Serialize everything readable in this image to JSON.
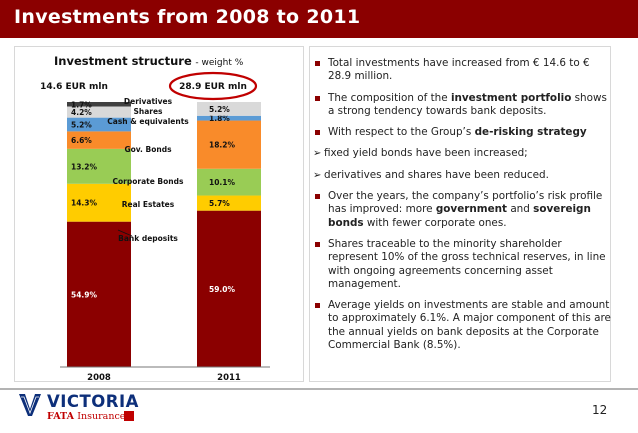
{
  "slide": {
    "title": "Investments from 2008 to 2011",
    "page_number": "12"
  },
  "colors": {
    "title_bar": "#8b0000",
    "bank_deposits": "#8b0000",
    "real_estates": "#ffcc00",
    "corporate_bonds": "#99cc55",
    "gov_bonds": "#f98b2a",
    "cash_equivalents": "#5b9bd5",
    "shares": "#d9d9d9",
    "derivatives": "#404040",
    "highlight_circle": "#c00000"
  },
  "chart_data": {
    "type": "bar",
    "stacked": true,
    "title": "Investment structure",
    "subtitle": "- weight %",
    "categories": [
      "2008",
      "2011"
    ],
    "totals": [
      "14.6 EUR mln",
      "28.9 EUR mln"
    ],
    "series": [
      {
        "name": "Bank deposits",
        "values": [
          54.9,
          59.0
        ],
        "labels": [
          "54.9%",
          "59.0%"
        ],
        "color": "#8b0000"
      },
      {
        "name": "Real Estates",
        "values": [
          14.3,
          5.7
        ],
        "labels": [
          "14.3%",
          "5.7%"
        ],
        "color": "#ffcc00"
      },
      {
        "name": "Corporate Bonds",
        "values": [
          13.2,
          10.1
        ],
        "labels": [
          "13.2%",
          "10.1%"
        ],
        "color": "#99cc55"
      },
      {
        "name": "Gov. Bonds",
        "values": [
          6.6,
          18.2
        ],
        "labels": [
          "6.6%",
          "18.2%"
        ],
        "color": "#f98b2a"
      },
      {
        "name": "Cash & equivalents",
        "values": [
          5.2,
          1.8
        ],
        "labels": [
          "5.2%",
          "1.8%"
        ],
        "color": "#5b9bd5"
      },
      {
        "name": "Shares",
        "values": [
          4.2,
          5.2
        ],
        "labels": [
          "4.2%",
          "5.2%"
        ],
        "color": "#d9d9d9"
      },
      {
        "name": "Derivatives",
        "values": [
          1.7,
          0.0
        ],
        "labels": [
          "1.7%",
          ""
        ],
        "color": "#404040"
      }
    ],
    "legend_labels": [
      "Derivatives",
      "Shares",
      "Cash & equivalents",
      "Gov. Bonds",
      "Corporate Bonds",
      "Real Estates",
      "Bank deposits"
    ],
    "ylim": [
      0,
      100
    ],
    "grid": false,
    "legend": "center"
  },
  "bullets": [
    {
      "type": "square",
      "parts": [
        {
          "t": "Total investments have increased from € 14.6 to € 28.9 million.",
          "b": false
        }
      ]
    },
    {
      "type": "square",
      "parts": [
        {
          "t": "The composition of the ",
          "b": false
        },
        {
          "t": "investment portfolio",
          "b": true
        },
        {
          "t": " shows a strong tendency towards bank deposits.",
          "b": false
        }
      ]
    },
    {
      "type": "square",
      "parts": [
        {
          "t": "With respect to the Group’s ",
          "b": false
        },
        {
          "t": "de-risking strategy",
          "b": true
        }
      ]
    },
    {
      "type": "arrow",
      "parts": [
        {
          "t": "fixed yield bonds have been increased;",
          "b": false
        }
      ]
    },
    {
      "type": "arrow",
      "parts": [
        {
          "t": "derivatives and shares have been reduced.",
          "b": false
        }
      ]
    },
    {
      "type": "square",
      "parts": [
        {
          "t": "Over the years, the company’s portfolio’s risk profile has improved: more ",
          "b": false
        },
        {
          "t": "government",
          "b": true
        },
        {
          "t": " and ",
          "b": false
        },
        {
          "t": "sovereign bonds",
          "b": true
        },
        {
          "t": " with fewer corporate ones.",
          "b": false
        }
      ]
    },
    {
      "type": "square",
      "parts": [
        {
          "t": "Shares traceable to the minority shareholder represent 10% of the gross technical reserves, in line with ongoing agreements concerning asset management.",
          "b": false
        }
      ]
    },
    {
      "type": "square",
      "parts": [
        {
          "t": "Average yields on investments are stable and amount to approximately 6.1%. A major component of this are the annual yields on bank deposits at the Corporate Commercial Bank (8.5%).",
          "b": false
        }
      ]
    }
  ],
  "logo": {
    "name": "VICTORIA",
    "sub_left": "FATA",
    "sub_right": "Insurance"
  }
}
